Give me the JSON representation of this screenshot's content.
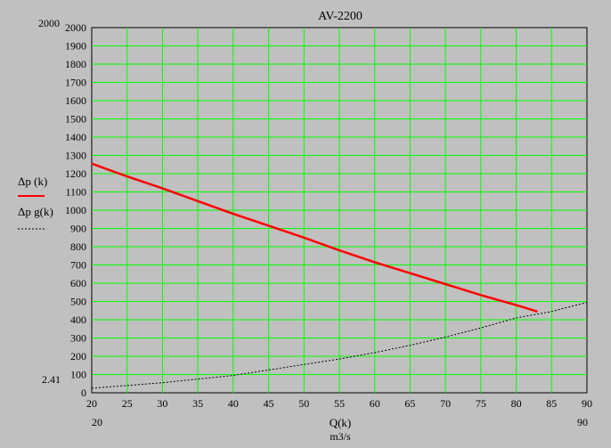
{
  "chart_data": {
    "type": "line",
    "title": "AV-2200",
    "xlabel": "Q(k)",
    "xunit": "m3/s",
    "xlim": [
      20,
      90
    ],
    "ylim": [
      0,
      2000
    ],
    "grid": true,
    "grid_color": "#00ff00",
    "background": "#c0c0c0",
    "x_ticks": [
      20,
      25,
      30,
      35,
      40,
      45,
      50,
      55,
      60,
      65,
      70,
      75,
      80,
      85,
      90
    ],
    "y_ticks": [
      0,
      100,
      200,
      300,
      400,
      500,
      600,
      700,
      800,
      900,
      1000,
      1100,
      1200,
      1300,
      1400,
      1500,
      1600,
      1700,
      1800,
      1900,
      2000
    ],
    "x_range_labels": {
      "min": "20",
      "max": "90"
    },
    "y_top_label": "2000",
    "y_bottom_label": "2.41",
    "legend": {
      "placement": "left",
      "entries": [
        {
          "label": "Δp  (k)",
          "style": "solid",
          "color": "#ff0000"
        },
        {
          "label": "Δp g(k)",
          "style": "dashed",
          "color": "#000000"
        }
      ]
    },
    "series": [
      {
        "name": "Δp  (k)",
        "style": "solid",
        "color": "#ff0000",
        "x": [
          20,
          25,
          30,
          35,
          40,
          45,
          50,
          55,
          60,
          65,
          70,
          75,
          80,
          83
        ],
        "y": [
          1255,
          1185,
          1120,
          1050,
          980,
          915,
          850,
          780,
          715,
          655,
          595,
          535,
          480,
          445
        ]
      },
      {
        "name": "Δp g(k)",
        "style": "dashed",
        "color": "#000000",
        "x": [
          20,
          25,
          30,
          35,
          40,
          45,
          50,
          55,
          60,
          65,
          70,
          75,
          80,
          85,
          90
        ],
        "y": [
          25,
          40,
          55,
          75,
          95,
          125,
          155,
          185,
          220,
          260,
          305,
          355,
          410,
          445,
          495
        ]
      }
    ]
  }
}
